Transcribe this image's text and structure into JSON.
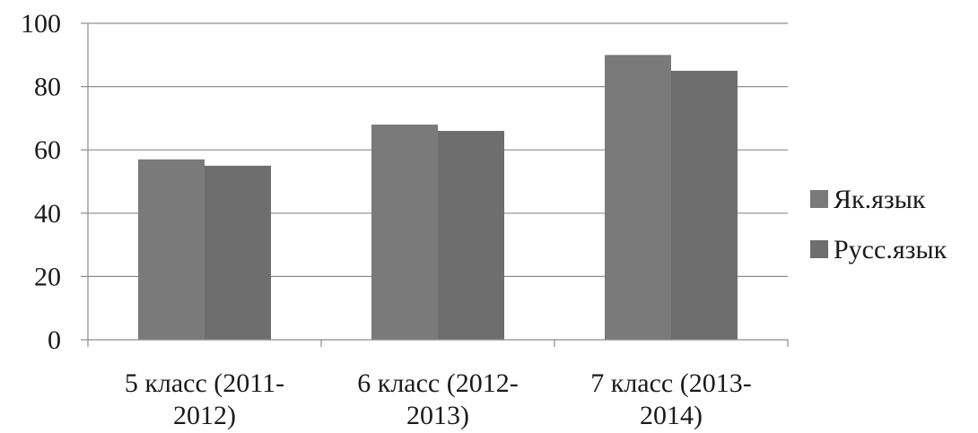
{
  "chart_data": {
    "type": "bar",
    "categories": [
      [
        "5 класс (2011-",
        "2012)"
      ],
      [
        "6 класс (2012-",
        "2013)"
      ],
      [
        "7 класс (2013-",
        "2014)"
      ]
    ],
    "series": [
      {
        "name": "Як.язык",
        "values": [
          57,
          68,
          90
        ],
        "color": "#7a7a7a"
      },
      {
        "name": "Русс.язык",
        "values": [
          55,
          66,
          85
        ],
        "color": "#6e6e6e"
      }
    ],
    "ylim": [
      0,
      100
    ],
    "yticks": [
      "0",
      "20",
      "40",
      "60",
      "80",
      "100"
    ],
    "grid": true,
    "legend_position": "right",
    "colors": {
      "grid": "#8c8c8c",
      "axis": "#8c8c8c",
      "text": "#1a1a1a"
    }
  }
}
